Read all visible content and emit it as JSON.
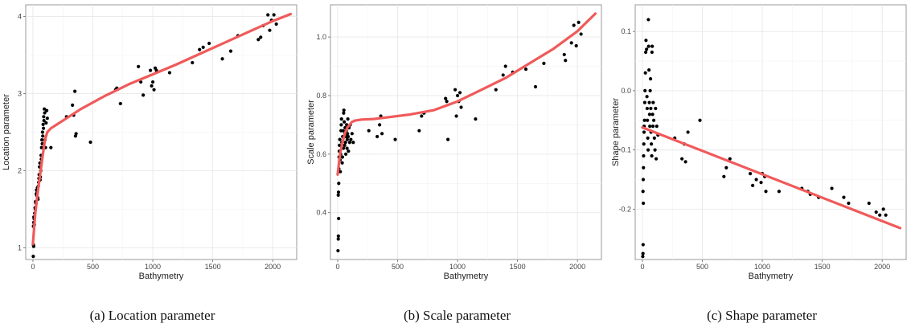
{
  "chart_data": [
    {
      "type": "scatter",
      "caption": "(a)  Location parameter",
      "xlabel": "Bathymetry",
      "ylabel": "Location parameter",
      "xlim": [
        -60,
        2200
      ],
      "ylim": [
        0.85,
        4.15
      ],
      "x_ticks": [
        0,
        500,
        1000,
        1500,
        2000
      ],
      "x_tick_labels": [
        "0",
        "500",
        "1000",
        "1500",
        "2000"
      ],
      "y_ticks": [
        1,
        2,
        3,
        4
      ],
      "y_tick_labels": [
        "1",
        "2",
        "3",
        "4"
      ],
      "grid": true,
      "points": [
        [
          3,
          0.89
        ],
        [
          4,
          1.04
        ],
        [
          6,
          1.02
        ],
        [
          4,
          1.28
        ],
        [
          7,
          1.33
        ],
        [
          8,
          1.4
        ],
        [
          10,
          1.38
        ],
        [
          12,
          1.3
        ],
        [
          15,
          1.45
        ],
        [
          18,
          1.52
        ],
        [
          20,
          1.5
        ],
        [
          22,
          1.6
        ],
        [
          25,
          1.58
        ],
        [
          28,
          1.7
        ],
        [
          30,
          1.75
        ],
        [
          32,
          1.68
        ],
        [
          35,
          1.72
        ],
        [
          38,
          1.78
        ],
        [
          40,
          1.65
        ],
        [
          42,
          1.63
        ],
        [
          45,
          1.8
        ],
        [
          48,
          1.85
        ],
        [
          50,
          1.9
        ],
        [
          52,
          1.95
        ],
        [
          55,
          2.05
        ],
        [
          58,
          2.1
        ],
        [
          60,
          1.88
        ],
        [
          62,
          1.92
        ],
        [
          65,
          2.0
        ],
        [
          68,
          2.2
        ],
        [
          70,
          2.15
        ],
        [
          72,
          2.3
        ],
        [
          75,
          2.4
        ],
        [
          78,
          2.35
        ],
        [
          80,
          2.5
        ],
        [
          82,
          2.45
        ],
        [
          85,
          2.6
        ],
        [
          88,
          2.55
        ],
        [
          90,
          2.7
        ],
        [
          92,
          2.65
        ],
        [
          95,
          2.8
        ],
        [
          98,
          2.75
        ],
        [
          100,
          2.4
        ],
        [
          105,
          2.3
        ],
        [
          110,
          2.62
        ],
        [
          115,
          2.78
        ],
        [
          120,
          2.68
        ],
        [
          150,
          2.3
        ],
        [
          280,
          2.7
        ],
        [
          330,
          2.85
        ],
        [
          340,
          2.72
        ],
        [
          350,
          3.03
        ],
        [
          355,
          2.45
        ],
        [
          360,
          2.48
        ],
        [
          480,
          2.37
        ],
        [
          690,
          3.05
        ],
        [
          700,
          3.07
        ],
        [
          730,
          2.87
        ],
        [
          880,
          3.35
        ],
        [
          900,
          3.15
        ],
        [
          920,
          2.98
        ],
        [
          980,
          3.3
        ],
        [
          990,
          3.1
        ],
        [
          1000,
          3.15
        ],
        [
          1010,
          3.05
        ],
        [
          1020,
          3.33
        ],
        [
          1030,
          3.3
        ],
        [
          1140,
          3.27
        ],
        [
          1330,
          3.4
        ],
        [
          1390,
          3.57
        ],
        [
          1420,
          3.6
        ],
        [
          1470,
          3.65
        ],
        [
          1580,
          3.45
        ],
        [
          1650,
          3.55
        ],
        [
          1710,
          3.75
        ],
        [
          1880,
          3.7
        ],
        [
          1900,
          3.73
        ],
        [
          1920,
          3.88
        ],
        [
          1960,
          4.02
        ],
        [
          1975,
          3.82
        ],
        [
          1990,
          3.95
        ],
        [
          2010,
          4.02
        ],
        [
          2030,
          3.9
        ]
      ],
      "series": [
        {
          "type": "line",
          "color": "#f05a5a",
          "x": [
            0,
            20,
            40,
            60,
            80,
            100,
            120,
            150,
            200,
            300,
            400,
            600,
            800,
            1000,
            1200,
            1400,
            1600,
            1800,
            2000,
            2150
          ],
          "y": [
            1.05,
            1.45,
            1.72,
            1.95,
            2.18,
            2.4,
            2.5,
            2.55,
            2.6,
            2.7,
            2.8,
            2.97,
            3.12,
            3.25,
            3.38,
            3.52,
            3.66,
            3.8,
            3.94,
            4.03
          ]
        }
      ]
    },
    {
      "type": "scatter",
      "caption": "(b)  Scale parameter",
      "xlabel": "Bathymetry",
      "ylabel": "Scale parameter",
      "xlim": [
        -60,
        2200
      ],
      "ylim": [
        0.24,
        1.11
      ],
      "x_ticks": [
        0,
        500,
        1000,
        1500,
        2000
      ],
      "x_tick_labels": [
        "0",
        "500",
        "1000",
        "1500",
        "2000"
      ],
      "y_ticks": [
        0.4,
        0.6,
        0.8,
        1.0
      ],
      "y_tick_labels": [
        "0.4",
        "0.6",
        "0.8",
        "1.0"
      ],
      "grid": true,
      "points": [
        [
          3,
          0.27
        ],
        [
          5,
          0.31
        ],
        [
          6,
          0.32
        ],
        [
          8,
          0.38
        ],
        [
          5,
          0.46
        ],
        [
          7,
          0.47
        ],
        [
          9,
          0.5
        ],
        [
          10,
          0.55
        ],
        [
          12,
          0.59
        ],
        [
          14,
          0.61
        ],
        [
          15,
          0.63
        ],
        [
          18,
          0.65
        ],
        [
          20,
          0.58
        ],
        [
          22,
          0.54
        ],
        [
          25,
          0.6
        ],
        [
          28,
          0.68
        ],
        [
          30,
          0.7
        ],
        [
          32,
          0.72
        ],
        [
          35,
          0.64
        ],
        [
          38,
          0.57
        ],
        [
          40,
          0.59
        ],
        [
          42,
          0.66
        ],
        [
          45,
          0.68
        ],
        [
          48,
          0.62
        ],
        [
          50,
          0.74
        ],
        [
          52,
          0.75
        ],
        [
          55,
          0.71
        ],
        [
          58,
          0.63
        ],
        [
          60,
          0.67
        ],
        [
          62,
          0.69
        ],
        [
          65,
          0.64
        ],
        [
          68,
          0.6
        ],
        [
          70,
          0.66
        ],
        [
          72,
          0.68
        ],
        [
          75,
          0.7
        ],
        [
          78,
          0.62
        ],
        [
          80,
          0.65
        ],
        [
          82,
          0.67
        ],
        [
          85,
          0.72
        ],
        [
          88,
          0.66
        ],
        [
          90,
          0.61
        ],
        [
          95,
          0.69
        ],
        [
          100,
          0.64
        ],
        [
          105,
          0.7
        ],
        [
          110,
          0.65
        ],
        [
          120,
          0.67
        ],
        [
          130,
          0.64
        ],
        [
          260,
          0.68
        ],
        [
          330,
          0.66
        ],
        [
          350,
          0.7
        ],
        [
          360,
          0.73
        ],
        [
          370,
          0.67
        ],
        [
          480,
          0.65
        ],
        [
          680,
          0.68
        ],
        [
          700,
          0.73
        ],
        [
          720,
          0.74
        ],
        [
          900,
          0.79
        ],
        [
          910,
          0.78
        ],
        [
          920,
          0.65
        ],
        [
          980,
          0.82
        ],
        [
          990,
          0.73
        ],
        [
          1000,
          0.8
        ],
        [
          1010,
          0.78
        ],
        [
          1020,
          0.81
        ],
        [
          1030,
          0.76
        ],
        [
          1150,
          0.72
        ],
        [
          1320,
          0.82
        ],
        [
          1380,
          0.87
        ],
        [
          1400,
          0.9
        ],
        [
          1460,
          0.88
        ],
        [
          1570,
          0.89
        ],
        [
          1650,
          0.83
        ],
        [
          1720,
          0.91
        ],
        [
          1890,
          0.94
        ],
        [
          1900,
          0.92
        ],
        [
          1950,
          0.98
        ],
        [
          1970,
          1.04
        ],
        [
          1990,
          0.97
        ],
        [
          2010,
          1.05
        ],
        [
          2030,
          1.01
        ]
      ],
      "series": [
        {
          "type": "line",
          "color": "#f05a5a",
          "x": [
            0,
            20,
            40,
            60,
            80,
            100,
            120,
            150,
            200,
            300,
            400,
            600,
            800,
            1000,
            1200,
            1400,
            1600,
            1800,
            2000,
            2150
          ],
          "y": [
            0.53,
            0.6,
            0.64,
            0.67,
            0.69,
            0.7,
            0.71,
            0.715,
            0.718,
            0.72,
            0.725,
            0.735,
            0.75,
            0.78,
            0.82,
            0.86,
            0.91,
            0.96,
            1.02,
            1.08
          ]
        }
      ]
    },
    {
      "type": "scatter",
      "caption": "(c)  Shape parameter",
      "xlabel": "Bathymetry",
      "ylabel": "Shape parameter",
      "xlim": [
        -60,
        2200
      ],
      "ylim": [
        -0.285,
        0.145
      ],
      "x_ticks": [
        0,
        500,
        1000,
        1500,
        2000
      ],
      "x_tick_labels": [
        "0",
        "500",
        "1000",
        "1500",
        "2000"
      ],
      "y_ticks": [
        0.1,
        0.0,
        -0.1,
        -0.2
      ],
      "y_tick_labels": [
        "0.1",
        "0.0",
        "-0.1",
        "-0.2"
      ],
      "grid": true,
      "points": [
        [
          3,
          -0.28
        ],
        [
          5,
          -0.275
        ],
        [
          6,
          -0.26
        ],
        [
          8,
          -0.19
        ],
        [
          5,
          -0.17
        ],
        [
          7,
          -0.15
        ],
        [
          9,
          -0.13
        ],
        [
          10,
          -0.11
        ],
        [
          12,
          -0.09
        ],
        [
          14,
          -0.07
        ],
        [
          15,
          -0.06
        ],
        [
          18,
          -0.05
        ],
        [
          20,
          -0.02
        ],
        [
          22,
          0.0
        ],
        [
          25,
          0.03
        ],
        [
          28,
          0.065
        ],
        [
          30,
          0.085
        ],
        [
          35,
          0.07
        ],
        [
          38,
          -0.01
        ],
        [
          40,
          -0.03
        ],
        [
          42,
          -0.05
        ],
        [
          45,
          -0.08
        ],
        [
          48,
          -0.1
        ],
        [
          50,
          0.12
        ],
        [
          52,
          0.075
        ],
        [
          55,
          0.035
        ],
        [
          58,
          -0.02
        ],
        [
          60,
          -0.04
        ],
        [
          62,
          -0.06
        ],
        [
          65,
          0.0
        ],
        [
          68,
          0.02
        ],
        [
          70,
          -0.03
        ],
        [
          72,
          -0.07
        ],
        [
          75,
          -0.09
        ],
        [
          78,
          -0.11
        ],
        [
          80,
          0.065
        ],
        [
          82,
          0.075
        ],
        [
          85,
          -0.04
        ],
        [
          88,
          -0.06
        ],
        [
          90,
          -0.02
        ],
        [
          95,
          -0.05
        ],
        [
          100,
          -0.08
        ],
        [
          105,
          -0.1
        ],
        [
          110,
          -0.03
        ],
        [
          115,
          -0.115
        ],
        [
          120,
          -0.06
        ],
        [
          130,
          -0.075
        ],
        [
          270,
          -0.08
        ],
        [
          330,
          -0.115
        ],
        [
          350,
          -0.09
        ],
        [
          360,
          -0.12
        ],
        [
          380,
          -0.07
        ],
        [
          480,
          -0.05
        ],
        [
          680,
          -0.145
        ],
        [
          700,
          -0.13
        ],
        [
          730,
          -0.115
        ],
        [
          900,
          -0.14
        ],
        [
          920,
          -0.16
        ],
        [
          950,
          -0.15
        ],
        [
          990,
          -0.155
        ],
        [
          1000,
          -0.14
        ],
        [
          1020,
          -0.145
        ],
        [
          1030,
          -0.17
        ],
        [
          1140,
          -0.17
        ],
        [
          1330,
          -0.165
        ],
        [
          1380,
          -0.17
        ],
        [
          1400,
          -0.175
        ],
        [
          1470,
          -0.18
        ],
        [
          1580,
          -0.165
        ],
        [
          1680,
          -0.18
        ],
        [
          1720,
          -0.19
        ],
        [
          1890,
          -0.19
        ],
        [
          1950,
          -0.205
        ],
        [
          1980,
          -0.21
        ],
        [
          2010,
          -0.2
        ],
        [
          2030,
          -0.21
        ]
      ],
      "series": [
        {
          "type": "line",
          "color": "#f05a5a",
          "x": [
            0,
            2150
          ],
          "y": [
            -0.062,
            -0.232
          ]
        }
      ]
    }
  ]
}
